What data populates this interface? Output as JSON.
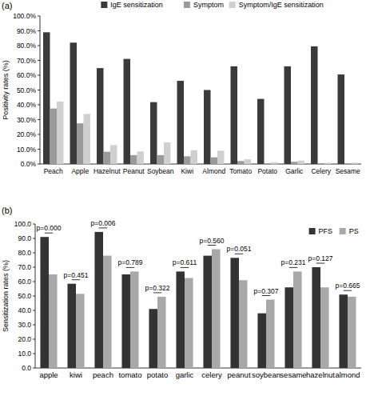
{
  "chart_data": [
    {
      "type": "bar",
      "title": "(a)",
      "y_label": "Positivity rates (%)",
      "categories": [
        "Peach",
        "Apple",
        "Hazelnut",
        "Peanut",
        "Soybean",
        "Kiwi",
        "Almond",
        "Tomato",
        "Potato",
        "Garlic",
        "Celery",
        "Sesame"
      ],
      "series": [
        {
          "name": "IgE sensitization",
          "color": "#3a3a3a",
          "values": [
            89.0,
            82.0,
            64.8,
            71.0,
            41.8,
            56.2,
            50.0,
            66.0,
            44.0,
            66.0,
            79.5,
            60.5
          ]
        },
        {
          "name": "Symptom",
          "color": "#9a9a9a",
          "values": [
            37.5,
            27.5,
            8.3,
            6.0,
            6.0,
            5.2,
            4.5,
            2.0,
            0.5,
            1.5,
            0.5,
            0.5
          ]
        },
        {
          "name": "Symptom/IgE sensitization",
          "color": "#cfcfcf",
          "values": [
            42.2,
            33.8,
            12.8,
            8.5,
            14.6,
            9.3,
            9.0,
            3.2,
            1.2,
            2.3,
            0.8,
            0.9
          ]
        }
      ],
      "ylim": [
        0,
        100
      ],
      "yticks": [
        {
          "value": 0,
          "label": "0.0%"
        },
        {
          "value": 10,
          "label": "10.0%"
        },
        {
          "value": 20,
          "label": "20.0%"
        },
        {
          "value": 30,
          "label": "30.0%"
        },
        {
          "value": 40,
          "label": "40.0%"
        },
        {
          "value": 50,
          "label": "50.0%"
        },
        {
          "value": 60,
          "label": "60.0%"
        },
        {
          "value": 70,
          "label": "70.0%"
        },
        {
          "value": 80,
          "label": "80.0%"
        },
        {
          "value": 90,
          "label": "90.0%"
        },
        {
          "value": 100,
          "label": "100.0%"
        }
      ],
      "legend": "top",
      "grid": false
    },
    {
      "type": "bar",
      "title": "(b)",
      "y_label": "Sensitization rates (%)",
      "categories": [
        "apple",
        "kiwi",
        "peach",
        "tomato",
        "potato",
        "garlic",
        "celery",
        "peanut",
        "soybean",
        "sesame",
        "hazelnut",
        "almond"
      ],
      "series": [
        {
          "name": "PFS",
          "color": "#333333",
          "values": [
            91.0,
            58.5,
            94.5,
            65.0,
            41.0,
            67.0,
            78.0,
            76.5,
            38.0,
            56.0,
            70.0,
            51.0
          ]
        },
        {
          "name": "PS",
          "color": "#a8a8a8",
          "values": [
            65.0,
            51.5,
            78.0,
            67.0,
            49.5,
            62.5,
            82.5,
            61.0,
            47.5,
            67.0,
            56.0,
            49.5
          ]
        }
      ],
      "annotations": [
        "p=0.000",
        "p=0.451",
        "p=0.006",
        "p=0.789",
        "p=0.322",
        "p=0.611",
        "p=0.560",
        "p=0.051",
        "p=0.307",
        "p=0.231",
        "p=0.127",
        "p=0.665"
      ],
      "ylim": [
        0,
        100
      ],
      "yticks": [
        {
          "value": 0,
          "label": "0.0"
        },
        {
          "value": 10,
          "label": "10.0"
        },
        {
          "value": 20,
          "label": "20.0"
        },
        {
          "value": 30,
          "label": "30.0"
        },
        {
          "value": 40,
          "label": "40.0"
        },
        {
          "value": 50,
          "label": "50.0"
        },
        {
          "value": 60,
          "label": "60.0"
        },
        {
          "value": 70,
          "label": "70.0"
        },
        {
          "value": 80,
          "label": "80.0"
        },
        {
          "value": 90,
          "label": "90.0"
        },
        {
          "value": 100,
          "label": "100.0"
        }
      ],
      "legend": "top-right",
      "grid": false
    }
  ]
}
